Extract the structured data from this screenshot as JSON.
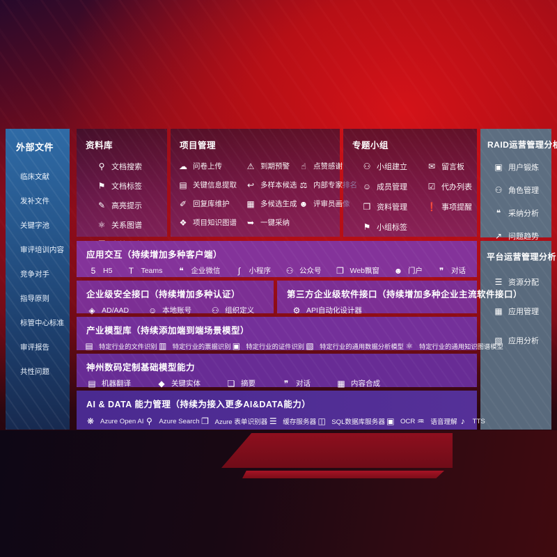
{
  "colors": {
    "background_red": "#b80f16",
    "sidebar_blue": "#27598f",
    "panel_purple": "#7e3195",
    "panel_blue_purple": "#4a2a90",
    "panel_gray": "#5d6e81",
    "text": "#ffffff"
  },
  "panels": {
    "sidebar": {
      "title": "外部文件",
      "items": [
        {
          "label": "临床文献"
        },
        {
          "label": "发补文件"
        },
        {
          "label": "关键字池"
        },
        {
          "label": "审评培训内容"
        },
        {
          "label": "竞争对手"
        },
        {
          "label": "指导原则"
        },
        {
          "label": "标管中心标准"
        },
        {
          "label": "审评报告"
        },
        {
          "label": "共性问题"
        }
      ]
    },
    "library": {
      "title": "资料库",
      "items": [
        {
          "label": "文档搜索",
          "icon": "doc-search-icon",
          "glyph": "⚲"
        },
        {
          "label": "文档标签",
          "icon": "doc-tag-icon",
          "glyph": "⚑"
        },
        {
          "label": "高亮提示",
          "icon": "highlight-icon",
          "glyph": "✎"
        },
        {
          "label": "关系图谱",
          "icon": "relation-graph-icon",
          "glyph": "⚛"
        },
        {
          "label": "文档分类",
          "icon": "doc-classify-icon",
          "glyph": "❐"
        }
      ]
    },
    "project": {
      "title": "项目管理",
      "items": [
        {
          "label": "问卷上传",
          "icon": "questionnaire-upload-icon",
          "glyph": "☁"
        },
        {
          "label": "到期预警",
          "icon": "due-alert-icon",
          "glyph": "⚠"
        },
        {
          "label": "点赞感谢",
          "icon": "like-thanks-icon",
          "glyph": "☝"
        },
        {
          "label": "关键信息提取",
          "icon": "key-info-extract-icon",
          "glyph": "▤"
        },
        {
          "label": "多样本候选",
          "icon": "multi-sample-icon",
          "glyph": "↩"
        },
        {
          "label": "内部专家排名",
          "icon": "expert-ranking-icon",
          "glyph": "⚖"
        },
        {
          "label": "回复库维护",
          "icon": "reply-library-icon",
          "glyph": "✐"
        },
        {
          "label": "多候选生成",
          "icon": "multi-candidate-icon",
          "glyph": "▦"
        },
        {
          "label": "评审员画像",
          "icon": "reviewer-profile-icon",
          "glyph": "☻"
        },
        {
          "label": "项目知识图谱",
          "icon": "project-knowledge-graph-icon",
          "glyph": "❖"
        },
        {
          "label": "一键采纳",
          "icon": "one-click-adopt-icon",
          "glyph": "➥"
        }
      ]
    },
    "groups": {
      "title": "专题小组",
      "items": [
        {
          "label": "小组建立",
          "icon": "group-create-icon",
          "glyph": "⚇"
        },
        {
          "label": "留言板",
          "icon": "message-board-icon",
          "glyph": "✉"
        },
        {
          "label": "成员管理",
          "icon": "member-manage-icon",
          "glyph": "☺"
        },
        {
          "label": "代办列表",
          "icon": "todo-list-icon",
          "glyph": "☑"
        },
        {
          "label": "资料管理",
          "icon": "material-manage-icon",
          "glyph": "❒"
        },
        {
          "label": "事项提醒",
          "icon": "reminder-bell-icon",
          "glyph": "❗"
        },
        {
          "label": "小组标签",
          "icon": "group-tag-icon",
          "glyph": "⚑"
        }
      ]
    },
    "raid": {
      "title": "RAID运营管理分析",
      "items": [
        {
          "label": "用户锻炼",
          "icon": "user-card-icon",
          "glyph": "▣"
        },
        {
          "label": "角色管理",
          "icon": "role-manage-icon",
          "glyph": "⚇"
        },
        {
          "label": "采纳分析",
          "icon": "adoption-analysis-icon",
          "glyph": "❝"
        },
        {
          "label": "问题趋势",
          "icon": "issue-trend-icon",
          "glyph": "↗"
        }
      ]
    },
    "platform": {
      "title": "平台运营管理分析",
      "items": [
        {
          "label": "资源分配",
          "icon": "resource-allocation-icon",
          "glyph": "☰"
        },
        {
          "label": "应用管理",
          "icon": "app-manage-icon",
          "glyph": "▦"
        },
        {
          "label": "应用分析",
          "icon": "app-analysis-icon",
          "glyph": "▧"
        }
      ]
    },
    "interaction": {
      "title": "应用交互（持续增加多种客户端）",
      "items": [
        {
          "label": "H5",
          "icon": "h5-icon",
          "glyph": "5"
        },
        {
          "label": "Teams",
          "icon": "teams-icon",
          "glyph": "T"
        },
        {
          "label": "企业微信",
          "icon": "wecom-icon",
          "glyph": "❝"
        },
        {
          "label": "小程序",
          "icon": "miniprogram-icon",
          "glyph": "∫"
        },
        {
          "label": "公众号",
          "icon": "official-account-icon",
          "glyph": "⚇"
        },
        {
          "label": "Web飘窗",
          "icon": "web-popup-icon",
          "glyph": "❐"
        },
        {
          "label": "门户",
          "icon": "portal-icon",
          "glyph": "☻"
        },
        {
          "label": "对话",
          "icon": "chat-icon",
          "glyph": "❞"
        }
      ]
    },
    "security": {
      "title": "企业级安全接口（持续增加多种认证）",
      "items": [
        {
          "label": "AD/AAD",
          "icon": "ad-aad-icon",
          "glyph": "◈"
        },
        {
          "label": "本地账号",
          "icon": "local-account-icon",
          "glyph": "☺"
        },
        {
          "label": "组织定义",
          "icon": "org-define-icon",
          "glyph": "⚇"
        }
      ]
    },
    "thirdparty": {
      "title": "第三方企业级软件接口（持续增加多种企业主流软件接口）",
      "items": [
        {
          "label": "API自动化设计器",
          "icon": "api-designer-icon",
          "glyph": "⚙"
        }
      ]
    },
    "models": {
      "title": "产业模型库（持续添加端到端场景模型）",
      "items": [
        {
          "label": "特定行业的文件识别",
          "icon": "file-recognition-icon",
          "glyph": "▤"
        },
        {
          "label": "特定行业的票据识别",
          "icon": "invoice-recognition-icon",
          "glyph": "▥"
        },
        {
          "label": "特定行业的证件识别",
          "icon": "id-recognition-icon",
          "glyph": "▣"
        },
        {
          "label": "特定行业的通用数据分析模型",
          "icon": "data-analysis-model-icon",
          "glyph": "▧"
        },
        {
          "label": "特定行业的通用知识图谱模型",
          "icon": "knowledge-graph-model-icon",
          "glyph": "⚛"
        }
      ]
    },
    "foundation": {
      "title": "神州数码定制基础模型能力",
      "items": [
        {
          "label": "机器翻译",
          "icon": "machine-translation-icon",
          "glyph": "▤"
        },
        {
          "label": "关键实体",
          "icon": "key-entity-icon",
          "glyph": "◆"
        },
        {
          "label": "摘要",
          "icon": "summary-icon",
          "glyph": "❏"
        },
        {
          "label": "对话",
          "icon": "dialogue-icon",
          "glyph": "❞"
        },
        {
          "label": "内容合成",
          "icon": "content-synthesis-icon",
          "glyph": "▦"
        }
      ]
    },
    "aidata": {
      "title": "AI & DATA 能力管理（持续为接入更多AI&DATA能力）",
      "items": [
        {
          "label": "Azure Open AI",
          "icon": "azure-openai-icon",
          "glyph": "❋"
        },
        {
          "label": "Azure Search",
          "icon": "azure-search-icon",
          "glyph": "⚲"
        },
        {
          "label": "Azure 表单识别器",
          "icon": "azure-form-recognizer-icon",
          "glyph": "❐"
        },
        {
          "label": "缓存服务器",
          "icon": "cache-server-icon",
          "glyph": "☰"
        },
        {
          "label": "SQL数据库服务器",
          "icon": "sql-server-icon",
          "glyph": "◫"
        },
        {
          "label": "OCR",
          "icon": "ocr-icon",
          "glyph": "▣"
        },
        {
          "label": "语音理解",
          "icon": "speech-understanding-icon",
          "glyph": "♒"
        },
        {
          "label": "TTS",
          "icon": "tts-icon",
          "glyph": "♪"
        }
      ]
    }
  }
}
